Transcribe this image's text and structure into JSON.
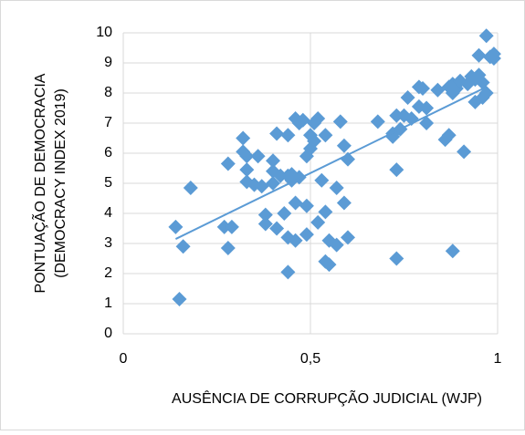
{
  "chart_data": {
    "type": "scatter",
    "xlabel": "AUSÊNCIA DE CORRUPÇÃO JUDICIAL (WJP)",
    "ylabel": [
      "PONTUAÇÃO DE DEMOCRACIA",
      "(DEMOCRACY INDEX 2019)"
    ],
    "color": "#5b9bd5",
    "grid": true,
    "xlim": [
      0,
      1
    ],
    "xticks": [
      0,
      {
        "value": 0.5,
        "label": "0,5"
      },
      1
    ],
    "ylim": [
      0,
      10
    ],
    "yticks": [
      0,
      1,
      2,
      3,
      4,
      5,
      6,
      7,
      8,
      9,
      10
    ],
    "x": [
      0.14,
      0.15,
      0.16,
      0.18,
      0.27,
      0.28,
      0.28,
      0.29,
      0.32,
      0.32,
      0.33,
      0.33,
      0.33,
      0.35,
      0.36,
      0.37,
      0.38,
      0.38,
      0.4,
      0.4,
      0.4,
      0.41,
      0.41,
      0.42,
      0.43,
      0.44,
      0.44,
      0.44,
      0.44,
      0.45,
      0.45,
      0.46,
      0.46,
      0.46,
      0.47,
      0.47,
      0.48,
      0.49,
      0.49,
      0.49,
      0.5,
      0.5,
      0.51,
      0.51,
      0.52,
      0.52,
      0.53,
      0.54,
      0.54,
      0.54,
      0.55,
      0.55,
      0.57,
      0.57,
      0.58,
      0.59,
      0.59,
      0.6,
      0.6,
      0.68,
      0.72,
      0.72,
      0.73,
      0.73,
      0.73,
      0.74,
      0.75,
      0.76,
      0.77,
      0.79,
      0.79,
      0.8,
      0.81,
      0.81,
      0.84,
      0.86,
      0.87,
      0.87,
      0.88,
      0.88,
      0.88,
      0.89,
      0.9,
      0.91,
      0.92,
      0.93,
      0.94,
      0.94,
      0.95,
      0.95,
      0.96,
      0.96,
      0.97,
      0.97,
      0.98,
      0.99,
      0.99
    ],
    "values": [
      3.55,
      1.15,
      2.9,
      4.85,
      3.55,
      5.65,
      2.85,
      3.55,
      6.5,
      6.05,
      5.9,
      5.45,
      5.05,
      4.95,
      5.9,
      4.9,
      3.95,
      3.65,
      5.75,
      5.4,
      5.0,
      6.65,
      3.5,
      5.25,
      4.0,
      5.25,
      3.2,
      6.6,
      2.05,
      5.1,
      5.3,
      7.15,
      4.35,
      3.1,
      7.0,
      5.2,
      7.1,
      4.25,
      3.3,
      5.9,
      6.15,
      6.6,
      6.4,
      7.0,
      3.7,
      7.15,
      5.1,
      6.6,
      4.05,
      2.4,
      2.3,
      3.1,
      2.95,
      4.85,
      7.05,
      6.25,
      4.35,
      5.8,
      3.2,
      7.05,
      6.65,
      6.55,
      7.25,
      5.45,
      2.5,
      6.8,
      7.25,
      7.85,
      7.15,
      8.2,
      7.55,
      8.15,
      7.5,
      7.0,
      8.1,
      6.45,
      6.6,
      8.2,
      8.3,
      8.0,
      2.75,
      8.15,
      8.4,
      6.05,
      8.3,
      8.55,
      7.7,
      8.45,
      9.25,
      8.6,
      7.85,
      8.35,
      9.9,
      8.0,
      9.2,
      9.3,
      9.15
    ],
    "trendline": {
      "x": [
        0.14,
        0.97
      ],
      "values": [
        3.15,
        8.2
      ]
    }
  }
}
